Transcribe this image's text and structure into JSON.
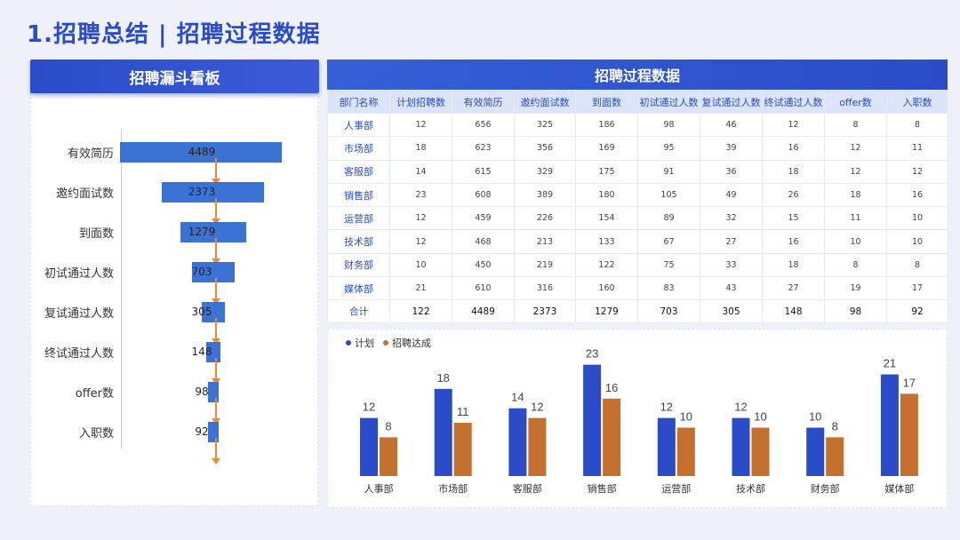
{
  "page": {
    "title": "1.招聘总结 | 招聘过程数据"
  },
  "funnel": {
    "header": "招聘漏斗看板",
    "stages": [
      {
        "label": "有效简历",
        "value": 4489
      },
      {
        "label": "邀约面试数",
        "value": 2373
      },
      {
        "label": "到面数",
        "value": 1279
      },
      {
        "label": "初试通过人数",
        "value": 703
      },
      {
        "label": "复试通过人数",
        "value": 305
      },
      {
        "label": "终试通过人数",
        "value": 148
      },
      {
        "label": "offer数",
        "value": 98
      },
      {
        "label": "入职数",
        "value": 92
      }
    ]
  },
  "table": {
    "header": "招聘过程数据",
    "columns": [
      "部门名称",
      "计划招聘数",
      "有效简历",
      "邀约面试数",
      "到面数",
      "初试通过人数",
      "复试通过人数",
      "终试通过人数",
      "offer数",
      "入职数"
    ],
    "rows": [
      [
        "人事部",
        "12",
        "656",
        "325",
        "186",
        "98",
        "46",
        "12",
        "8",
        "8"
      ],
      [
        "市场部",
        "18",
        "623",
        "356",
        "169",
        "95",
        "39",
        "16",
        "12",
        "11"
      ],
      [
        "客服部",
        "14",
        "615",
        "329",
        "175",
        "91",
        "36",
        "18",
        "12",
        "12"
      ],
      [
        "销售部",
        "23",
        "608",
        "389",
        "180",
        "105",
        "49",
        "26",
        "18",
        "16"
      ],
      [
        "运营部",
        "12",
        "459",
        "226",
        "154",
        "89",
        "32",
        "15",
        "11",
        "10"
      ],
      [
        "技术部",
        "12",
        "468",
        "213",
        "133",
        "67",
        "27",
        "16",
        "10",
        "10"
      ],
      [
        "财务部",
        "10",
        "450",
        "219",
        "122",
        "75",
        "33",
        "18",
        "8",
        "8"
      ],
      [
        "媒体部",
        "21",
        "610",
        "316",
        "160",
        "83",
        "43",
        "27",
        "19",
        "17"
      ]
    ],
    "total": [
      "合计",
      "122",
      "4489",
      "2373",
      "1279",
      "703",
      "305",
      "148",
      "98",
      "92"
    ]
  },
  "colors": {
    "plan": "#2a4cc8",
    "achieved": "#c4702f",
    "funnel_bar": "#3a73d3",
    "arrow": "#e8893d"
  },
  "chart_data": {
    "type": "bar",
    "categories": [
      "人事部",
      "市场部",
      "客服部",
      "销售部",
      "运营部",
      "技术部",
      "财务部",
      "媒体部"
    ],
    "series": [
      {
        "name": "计划",
        "values": [
          12,
          18,
          14,
          23,
          12,
          12,
          10,
          21
        ]
      },
      {
        "name": "招聘达成",
        "values": [
          8,
          11,
          12,
          16,
          10,
          10,
          8,
          17
        ]
      }
    ],
    "legend": "top-left",
    "ylim": [
      0,
      25
    ]
  }
}
